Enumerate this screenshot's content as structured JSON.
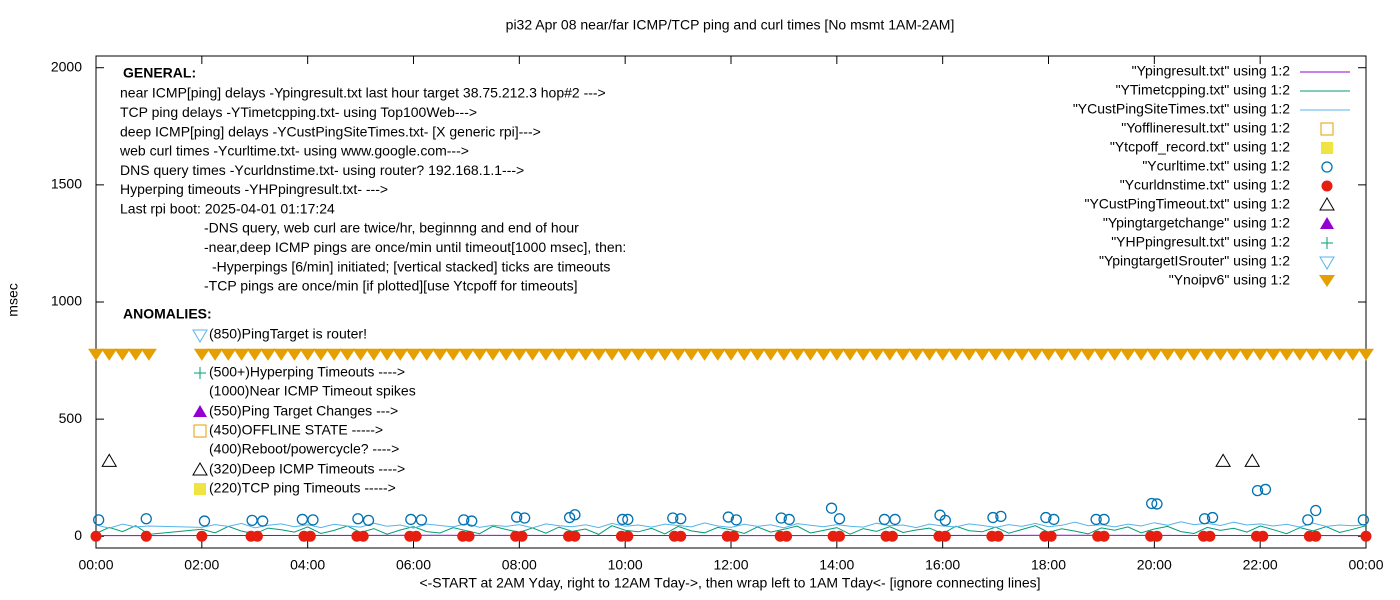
{
  "chart_data": {
    "type": "gnuplot",
    "title": "pi32 Apr 08  near/far ICMP/TCP ping and curl times [No msmt 1AM-2AM]",
    "xlabel": "<-START at 2AM Yday, right to 12AM Tday->, then wrap left to 1AM Tday<- [ignore connecting lines]",
    "ylabel": "msec",
    "xlim": [
      0,
      24
    ],
    "ylim": [
      -50,
      2050
    ],
    "xticks": [
      {
        "value": 0,
        "label": "00:00"
      },
      {
        "value": 2,
        "label": "02:00"
      },
      {
        "value": 4,
        "label": "04:00"
      },
      {
        "value": 6,
        "label": "06:00"
      },
      {
        "value": 8,
        "label": "08:00"
      },
      {
        "value": 10,
        "label": "10:00"
      },
      {
        "value": 12,
        "label": "12:00"
      },
      {
        "value": 14,
        "label": "14:00"
      },
      {
        "value": 16,
        "label": "16:00"
      },
      {
        "value": 18,
        "label": "18:00"
      },
      {
        "value": 20,
        "label": "20:00"
      },
      {
        "value": 22,
        "label": "22:00"
      },
      {
        "value": 24,
        "label": "00:00"
      }
    ],
    "yticks": [
      0,
      500,
      1000,
      1500,
      2000
    ],
    "general_heading": "GENERAL:",
    "general_lines": [
      "near ICMP[ping] delays -Ypingresult.txt last hour target 38.75.212.3 hop#2 --->",
      "TCP ping delays -YTimetcpping.txt- using Top100Web--->",
      "deep ICMP[ping] delays -YCustPingSiteTimes.txt- [X generic rpi]--->",
      "web curl times -Ycurltime.txt- using www.google.com--->",
      "DNS query times -Ycurldnstime.txt- using router? 192.168.1.1--->",
      "Hyperping timeouts -YHPpingresult.txt- --->",
      "Last rpi boot: 2025-04-01 01:17:24"
    ],
    "notes": [
      "-DNS query, web curl are twice/hr, beginnng and end of hour",
      "-near,deep ICMP pings are once/min until timeout[1000 msec], then:",
      "-Hyperpings [6/min] initiated; [vertical stacked] ticks are timeouts",
      "-TCP pings are once/min [if plotted][use Ytcpoff for timeouts]"
    ],
    "anomalies_heading": "ANOMALIES:",
    "anomalies": [
      "(850)PingTarget is router!",
      "(500+)Hyperping Timeouts ---->",
      "(1000)Near ICMP Timeout spikes",
      "(550)Ping Target Changes --->",
      "(450)OFFLINE STATE ----->",
      "(400)Reboot/powercycle? ---->",
      "(320)Deep ICMP Timeouts ---->",
      "(220)TCP ping Timeouts ----->"
    ],
    "x": [
      0,
      0.25,
      0.5,
      0.75,
      1,
      2,
      2.25,
      2.5,
      2.75,
      3,
      3.25,
      3.5,
      3.75,
      4,
      4.25,
      4.5,
      4.75,
      5,
      5.25,
      5.5,
      5.75,
      6,
      6.25,
      6.5,
      6.75,
      7,
      7.25,
      7.5,
      7.75,
      8,
      8.25,
      8.5,
      8.75,
      9,
      9.25,
      9.5,
      9.75,
      10,
      10.25,
      10.5,
      10.75,
      11,
      11.25,
      11.5,
      11.75,
      12,
      12.25,
      12.5,
      12.75,
      13,
      13.25,
      13.5,
      13.75,
      14,
      14.25,
      14.5,
      14.75,
      15,
      15.25,
      15.5,
      15.75,
      16,
      16.25,
      16.5,
      16.75,
      17,
      17.25,
      17.5,
      17.75,
      18,
      18.25,
      18.5,
      18.75,
      19,
      19.25,
      19.5,
      19.75,
      20,
      20.25,
      20.5,
      20.75,
      21,
      21.25,
      21.5,
      21.75,
      22,
      22.25,
      22.5,
      22.75,
      23,
      23.25,
      23.5,
      23.75,
      24
    ],
    "series": [
      {
        "name": "\"Ypingresult.txt\" using 1:2",
        "color": "#9400d3",
        "style": "line",
        "x": [
          0,
          6,
          12,
          18,
          24
        ],
        "values": [
          3,
          4,
          3,
          4,
          3
        ]
      },
      {
        "name": "\"YTimetcpping.txt\" using 1:2",
        "color": "#009e73",
        "style": "line",
        "values": [
          12,
          38,
          20,
          45,
          8,
          30,
          15,
          42,
          22,
          10,
          35,
          28,
          18,
          40,
          12,
          25,
          44,
          16,
          33,
          9,
          27,
          41,
          20,
          14,
          37,
          24,
          11,
          43,
          29,
          17,
          36,
          13,
          39,
          21,
          31,
          8,
          45,
          26,
          19,
          34,
          10,
          42,
          23,
          15,
          38,
          28,
          12,
          40,
          18,
          30,
          44,
          14,
          25,
          37,
          9,
          33,
          21,
          41,
          16,
          27,
          35,
          11,
          43,
          24,
          19,
          39,
          13,
          29,
          45,
          17,
          32,
          22,
          10,
          36,
          26,
          40,
          15,
          31,
          42,
          20,
          12,
          38,
          25,
          34,
          18,
          44,
          28,
          11,
          37,
          23,
          41,
          16,
          30,
          45
        ]
      },
      {
        "name": "\"YCustPingSiteTimes.txt\" using 1:2",
        "color": "#56b4e9",
        "style": "line",
        "values": [
          48,
          35,
          52,
          40,
          44,
          38,
          50,
          42,
          55,
          36,
          47,
          53,
          41,
          49,
          37,
          51,
          44,
          39,
          56,
          43,
          48,
          35,
          52,
          46,
          40,
          54,
          38,
          47,
          42,
          50,
          36,
          53,
          45,
          41,
          49,
          37,
          55,
          43,
          48,
          39,
          52,
          46,
          40,
          57,
          44,
          38,
          51,
          42,
          49,
          36,
          54,
          47,
          41,
          50,
          43,
          39,
          56,
          45,
          48,
          37,
          52,
          44,
          40,
          53,
          46,
          38,
          50,
          42,
          55,
          41,
          47,
          60,
          45,
          49,
          40,
          52,
          44,
          58,
          47,
          62,
          50,
          55,
          46,
          60,
          48,
          53,
          44,
          51,
          39,
          56,
          42,
          48,
          45,
          50
        ]
      },
      {
        "name": "\"Yofflineresult.txt\" using 1:2",
        "color": "#e69f00",
        "style": "points",
        "marker": "square-open",
        "x": [],
        "values": []
      },
      {
        "name": "\"Ytcpoff_record.txt\" using 1:2",
        "color": "#f0e442",
        "style": "points",
        "marker": "square-filled",
        "x": [],
        "values": []
      },
      {
        "name": "\"Ycurltime.txt\" using 1:2",
        "color": "#0072b2",
        "style": "points",
        "marker": "circle-open",
        "x": [
          0.05,
          0.95,
          2.05,
          2.95,
          3.15,
          3.9,
          4.1,
          4.95,
          5.15,
          5.95,
          6.15,
          6.95,
          7.1,
          7.95,
          8.1,
          8.95,
          9.05,
          9.95,
          10.05,
          10.9,
          11.05,
          11.95,
          12.1,
          12.95,
          13.1,
          13.9,
          14.05,
          14.9,
          15.1,
          15.95,
          16.05,
          16.95,
          17.1,
          17.95,
          18.1,
          18.9,
          19.05,
          19.95,
          20.05,
          20.95,
          21.1,
          21.95,
          22.1,
          22.9,
          23.05,
          23.95
        ],
        "values": [
          70,
          75,
          65,
          68,
          65,
          72,
          70,
          75,
          68,
          72,
          70,
          70,
          65,
          82,
          78,
          80,
          92,
          72,
          72,
          78,
          75,
          82,
          70,
          78,
          72,
          120,
          75,
          72,
          72,
          90,
          68,
          80,
          85,
          80,
          72,
          72,
          72,
          140,
          138,
          75,
          80,
          195,
          200,
          70,
          110,
          70
        ]
      },
      {
        "name": "\"Ycurldnstime.txt\" using 1:2",
        "color": "#e51e10",
        "style": "points",
        "marker": "circle-filled",
        "x": [
          0,
          0.95,
          2,
          2.93,
          3.05,
          3.93,
          4.05,
          4.93,
          5.05,
          5.93,
          6.05,
          6.93,
          7.05,
          7.93,
          8.05,
          8.93,
          9.05,
          9.93,
          10.05,
          10.93,
          11.05,
          11.93,
          12.05,
          12.93,
          13.05,
          13.93,
          14.05,
          14.93,
          15.05,
          15.93,
          16.05,
          16.93,
          17.05,
          17.93,
          18.05,
          18.93,
          19.05,
          19.93,
          20.05,
          20.93,
          21.05,
          21.93,
          22.05,
          22.93,
          23.05,
          24
        ],
        "values": [
          0,
          0,
          0,
          0,
          0,
          0,
          0,
          0,
          0,
          0,
          0,
          0,
          0,
          0,
          0,
          0,
          0,
          0,
          0,
          0,
          0,
          0,
          0,
          0,
          0,
          0,
          0,
          0,
          0,
          0,
          0,
          0,
          0,
          0,
          0,
          0,
          0,
          0,
          0,
          0,
          0,
          0,
          0,
          0,
          0,
          0
        ]
      },
      {
        "name": "\"YCustPingTimeout.txt\" using 1:2",
        "color": "#000000",
        "style": "points",
        "marker": "triangle-open",
        "x": [
          0.25,
          21.3,
          21.85
        ],
        "values": [
          320,
          320,
          320
        ]
      },
      {
        "name": "\"Ypingtargetchange\" using 1:2",
        "color": "#9400d3",
        "style": "points",
        "marker": "triangle-filled",
        "x": [],
        "values": []
      },
      {
        "name": "\"YHPpingresult.txt\" using 1:2",
        "color": "#009e73",
        "style": "points",
        "marker": "plus",
        "x": [],
        "values": []
      },
      {
        "name": "\"YpingtargetISrouter\" using 1:2",
        "color": "#56b4e9",
        "style": "points",
        "marker": "triangle-down-open",
        "x": [],
        "values": []
      },
      {
        "name": "\"Ynoipv6\" using 1:2",
        "color": "#e69f00",
        "style": "points",
        "marker": "triangle-down-filled",
        "values": [
          775,
          775,
          775,
          775,
          775,
          775,
          775,
          775,
          775,
          775,
          775,
          775,
          775,
          775,
          775,
          775,
          775,
          775,
          775,
          775,
          775,
          775,
          775,
          775,
          775,
          775,
          775,
          775,
          775,
          775,
          775,
          775,
          775,
          775,
          775,
          775,
          775,
          775,
          775,
          775,
          775,
          775,
          775,
          775,
          775,
          775,
          775,
          775,
          775,
          775,
          775,
          775,
          775,
          775,
          775,
          775,
          775,
          775,
          775,
          775,
          775,
          775,
          775,
          775,
          775,
          775,
          775,
          775,
          775,
          775,
          775,
          775,
          775,
          775,
          775,
          775,
          775,
          775,
          775,
          775,
          775,
          775,
          775,
          775,
          775,
          775,
          775,
          775,
          775,
          775,
          775,
          775,
          775,
          775
        ]
      }
    ]
  }
}
